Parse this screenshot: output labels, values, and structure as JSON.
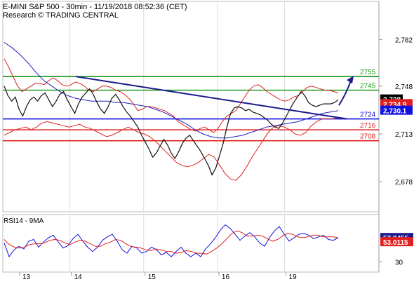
{
  "header": {
    "title": "E-MINI S&P 500 - 30min - 11/19/2018 08:52:36 (CET)",
    "subtitle": "Research © TRADING CENTRAL"
  },
  "colors": {
    "price": "#111111",
    "bollinger": "#e02020",
    "ma_blue": "#2020c0",
    "trendline": "#1a1a8c",
    "resistance": "#1a9a1a",
    "pivot": "#1010e0",
    "support": "#e02020",
    "last_price_box": "#e02020",
    "marker_box": "#000000",
    "pivot_box": "#1010e0",
    "rsi_box": "#1a1a8c",
    "rsi_ma_box": "#e02020",
    "rsi_line": "#1010e0",
    "rsi_ma_line": "#e02020",
    "arrow": "#1a1a8c"
  },
  "levels": [
    {
      "label": "2755",
      "value": 2755,
      "kind": "resistance"
    },
    {
      "label": "2745",
      "value": 2745,
      "kind": "resistance"
    },
    {
      "label": "2724",
      "value": 2724,
      "kind": "pivot"
    },
    {
      "label": "2716",
      "value": 2716,
      "kind": "support"
    },
    {
      "label": "2708",
      "value": 2708,
      "kind": "support"
    }
  ],
  "price_axis": {
    "ticks": [
      "2,782",
      "2,748",
      "2,713",
      "2,678"
    ],
    "tick_values": [
      2782,
      2748,
      2713,
      2678
    ],
    "min": 2656,
    "max": 2810,
    "marker_label": "2,738",
    "marker_value": 2738.3,
    "last_label": "2,734.9",
    "last_value": 2734.9,
    "pivot_label": "2,730.1",
    "pivot_value": 2730.1
  },
  "rsi": {
    "label": "RSI14 - 9MA",
    "ticks": [
      "30"
    ],
    "tick_values": [
      30
    ],
    "min": 18,
    "max": 85,
    "value_label": "57.8455",
    "value": 57.8455,
    "ma_label": "53.0115",
    "ma_value": 53.0115
  },
  "x_axis": {
    "labels": [
      "13",
      "14",
      "15",
      "16",
      "19"
    ],
    "session_fracs": [
      0.0,
      0.2,
      0.42,
      0.64,
      0.84,
      1.0
    ]
  },
  "chart_data": {
    "type": "line",
    "title": "E-MINI S&P 500 - 30min - 11/19/2018 08:52:36 (CET)",
    "x_labels": [
      "13",
      "14",
      "15",
      "16",
      "19"
    ],
    "price_series": [
      2748,
      2741,
      2737,
      2740,
      2731,
      2726,
      2733,
      2738,
      2740,
      2737,
      2741,
      2743,
      2738,
      2733,
      2737,
      2742,
      2744,
      2738,
      2733,
      2728,
      2735,
      2740,
      2743,
      2746,
      2742,
      2736,
      2731,
      2728,
      2733,
      2739,
      2742,
      2738,
      2733,
      2729,
      2726,
      2722,
      2718,
      2712,
      2707,
      2702,
      2696,
      2699,
      2704,
      2709,
      2705,
      2699,
      2695,
      2700,
      2706,
      2710,
      2712,
      2708,
      2704,
      2700,
      2695,
      2690,
      2683,
      2688,
      2697,
      2706,
      2718,
      2728,
      2732,
      2733,
      2732,
      2730,
      2731,
      2729,
      2728,
      2727,
      2725,
      2723,
      2720,
      2718,
      2717,
      2721,
      2726,
      2731,
      2736,
      2740,
      2744,
      2741,
      2736,
      2734,
      2733,
      2734,
      2735,
      2735,
      2735,
      2736,
      2738
    ],
    "upper_band": [
      2768,
      2762,
      2755,
      2748,
      2744,
      2746,
      2748,
      2750,
      2750,
      2749,
      2752,
      2754,
      2752,
      2749,
      2748,
      2749,
      2751,
      2750,
      2748,
      2745,
      2744,
      2746,
      2748,
      2748,
      2747,
      2745,
      2744,
      2742,
      2739,
      2735,
      2730,
      2731,
      2733,
      2733,
      2732,
      2731,
      2730,
      2728,
      2726,
      2722,
      2720,
      2718,
      2716,
      2715,
      2717,
      2718,
      2716,
      2714,
      2717,
      2722,
      2726,
      2728,
      2730,
      2735,
      2740,
      2745,
      2748,
      2749,
      2747,
      2744,
      2742,
      2740,
      2738,
      2737,
      2738,
      2740,
      2741,
      2744,
      2747,
      2748,
      2747,
      2746,
      2745,
      2745,
      2744,
      2743
    ],
    "lower_band": [
      2712,
      2714,
      2716,
      2717,
      2718,
      2716,
      2718,
      2721,
      2722,
      2721,
      2720,
      2719,
      2718,
      2719,
      2720,
      2718,
      2717,
      2715,
      2713,
      2711,
      2712,
      2714,
      2716,
      2718,
      2716,
      2714,
      2713,
      2711,
      2708,
      2704,
      2700,
      2696,
      2692,
      2690,
      2689,
      2690,
      2692,
      2695,
      2698,
      2696,
      2690,
      2684,
      2680,
      2679,
      2683,
      2689,
      2696,
      2702,
      2708,
      2714,
      2718,
      2719,
      2718,
      2716,
      2713,
      2712,
      2714,
      2719,
      2722,
      2724,
      2724,
      2724,
      2725
    ],
    "ma_series": [
      2780,
      2776,
      2771,
      2765,
      2758,
      2752,
      2748,
      2744,
      2741,
      2739,
      2738,
      2737,
      2737,
      2737,
      2736,
      2736,
      2735,
      2734,
      2733,
      2731,
      2729,
      2726,
      2723,
      2720,
      2716,
      2713,
      2711,
      2710,
      2710,
      2711,
      2712,
      2714,
      2716,
      2718,
      2719,
      2720,
      2721,
      2722,
      2724,
      2726,
      2728,
      2729,
      2730
    ],
    "trendline": {
      "start": 2755,
      "end": 2724
    },
    "rsi_series": [
      52,
      36,
      44,
      48,
      45,
      54,
      56,
      47,
      53,
      58,
      61,
      53,
      46,
      49,
      57,
      62,
      54,
      47,
      42,
      47,
      55,
      59,
      62,
      54,
      44,
      40,
      48,
      46,
      40,
      42,
      47,
      44,
      38,
      41,
      36,
      42,
      47,
      40,
      36,
      40,
      36,
      45,
      51,
      58,
      67,
      73,
      69,
      62,
      55,
      60,
      64,
      59,
      52,
      48,
      58,
      66,
      71,
      62,
      54,
      58,
      62,
      63,
      61,
      57,
      59,
      61,
      56,
      55,
      58
    ],
    "rsi_ma_series": [
      56,
      50,
      47,
      46,
      47,
      50,
      51,
      51,
      52,
      55,
      56,
      55,
      52,
      50,
      53,
      55,
      54,
      51,
      48,
      48,
      51,
      53,
      56,
      55,
      51,
      48,
      47,
      46,
      44,
      43,
      45,
      44,
      42,
      42,
      40,
      41,
      43,
      42,
      40,
      40,
      39,
      42,
      46,
      51,
      57,
      63,
      66,
      64,
      60,
      60,
      61,
      60,
      57,
      54,
      56,
      60,
      63,
      62,
      59,
      58,
      59,
      61,
      61,
      59,
      59,
      59,
      58
    ],
    "levels": [
      2755,
      2745,
      2724,
      2716,
      2708
    ],
    "ylim": [
      2656,
      2810
    ],
    "rsi_ylim": [
      18,
      85
    ]
  }
}
